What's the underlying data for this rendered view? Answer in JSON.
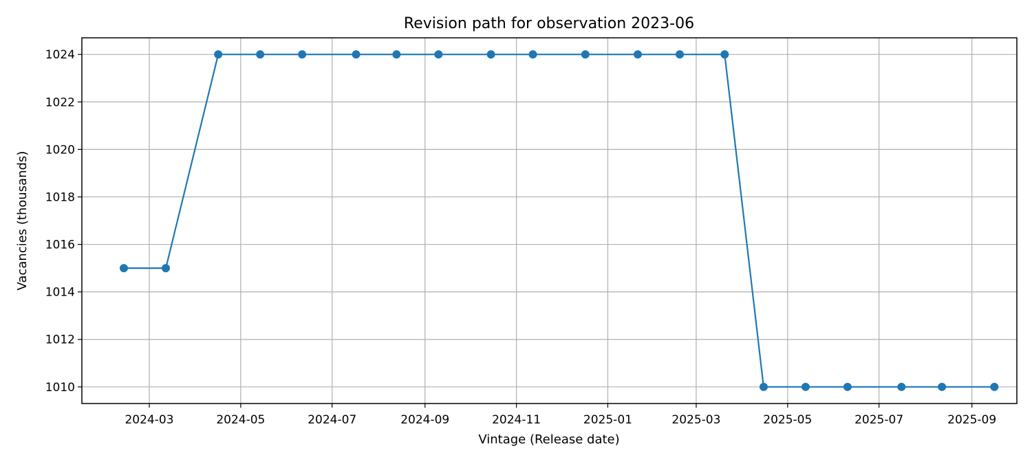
{
  "chart_data": {
    "type": "line",
    "title": "Revision path for observation 2023-06",
    "xlabel": "Vintage (Release date)",
    "ylabel": "Vacancies (thousands)",
    "x_ticks": [
      "2024-03",
      "2024-05",
      "2024-07",
      "2024-09",
      "2024-11",
      "2025-01",
      "2025-03",
      "2025-05",
      "2025-07",
      "2025-09"
    ],
    "y_ticks": [
      1010,
      1012,
      1014,
      1016,
      1018,
      1020,
      1022,
      1024
    ],
    "xlim": [
      "2024-01-16",
      "2025-10-01"
    ],
    "ylim": [
      1009.3,
      1024.7
    ],
    "grid": true,
    "line_color": "#1f77b4",
    "marker": "circle",
    "series": [
      {
        "x": [
          "2024-02-13",
          "2024-03-12",
          "2024-04-16",
          "2024-05-14",
          "2024-06-11",
          "2024-07-17",
          "2024-08-13",
          "2024-09-10",
          "2024-10-15",
          "2024-11-12",
          "2024-12-17",
          "2025-01-21",
          "2025-02-18",
          "2025-03-20",
          "2025-04-15",
          "2025-05-13",
          "2025-06-10",
          "2025-07-16",
          "2025-08-12",
          "2025-09-16"
        ],
        "y": [
          1015,
          1015,
          1024,
          1024,
          1024,
          1024,
          1024,
          1024,
          1024,
          1024,
          1024,
          1024,
          1024,
          1024,
          1010,
          1010,
          1010,
          1010,
          1010,
          1010
        ]
      }
    ]
  }
}
